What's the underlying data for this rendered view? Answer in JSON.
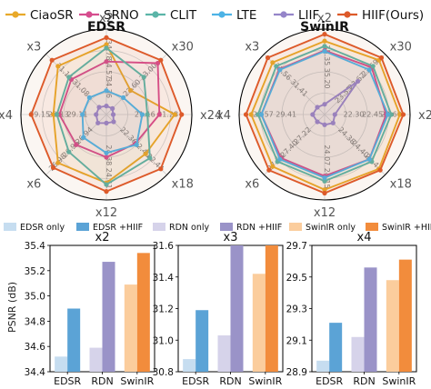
{
  "legend_top": [
    {
      "label": "CiaoSR",
      "color": "#e8a92a"
    },
    {
      "label": "SRNO",
      "color": "#d64d8e"
    },
    {
      "label": "CLIT",
      "color": "#5bb5a8"
    },
    {
      "label": "LTE",
      "color": "#4db3e6"
    },
    {
      "label": "LIIF",
      "color": "#9585c9"
    },
    {
      "label": "HIIF(Ours)",
      "color": "#dd5a2a"
    }
  ],
  "legend_bottom": [
    {
      "label": "EDSR only",
      "color": "#c6ddf0"
    },
    {
      "label": "EDSR +HIIF",
      "color": "#5ba3d6"
    },
    {
      "label": "RDN only",
      "color": "#d6d3ea"
    },
    {
      "label": "RDN +HIIF",
      "color": "#9a93c8"
    },
    {
      "label": "SwinIR only",
      "color": "#fbcd9d"
    },
    {
      "label": "SwinIR +HIIF",
      "color": "#f28c3c"
    }
  ],
  "chart_data": [
    {
      "type": "radar",
      "title": "EDSR",
      "axes": [
        "x2",
        "x30",
        "x24",
        "x18",
        "x12",
        "x6",
        "x4",
        "x3"
      ],
      "tick_labels": [
        [
          "34.36",
          "34.57",
          "34.78"
        ],
        [
          "22.60",
          "23.00"
        ],
        [
          "21.16",
          "21.28"
        ],
        [
          "22.36",
          "22.40",
          "22.44"
        ],
        [
          "24.38",
          "24.41"
        ],
        [
          "26.94",
          "26.96",
          "26.98"
        ],
        [
          "29.11",
          "29.13",
          "29.15"
        ],
        [
          "31.08",
          "31.11"
        ]
      ],
      "series": [
        {
          "name": "CiaoSR",
          "values": [
            0.82,
            0.4,
            0.8,
            0.65,
            0.8,
            0.8,
            0.62,
            0.8
          ]
        },
        {
          "name": "SRNO",
          "values": [
            0.62,
            0.85,
            0.62,
            0.48,
            0.5,
            0.5,
            0.55,
            0.58
          ]
        },
        {
          "name": "CLIT",
          "values": [
            0.78,
            0.62,
            0.48,
            0.72,
            0.82,
            0.62,
            0.58,
            0.62
          ]
        },
        {
          "name": "LTE",
          "values": [
            0.28,
            0.28,
            0.42,
            0.5,
            0.45,
            0.38,
            0.28,
            0.28
          ]
        },
        {
          "name": "LIIF",
          "values": [
            0.1,
            0.1,
            0.08,
            0.12,
            0.1,
            0.14,
            0.12,
            0.12
          ]
        },
        {
          "name": "HIIF(Ours)",
          "values": [
            0.9,
            0.9,
            0.88,
            0.9,
            0.9,
            0.88,
            0.88,
            0.9
          ]
        }
      ]
    },
    {
      "type": "radar",
      "title": "SwinIR",
      "axes": [
        "x2",
        "x30",
        "x24",
        "x18",
        "x12",
        "x6",
        "x4",
        "x3"
      ],
      "tick_labels": [
        [
          "35.20",
          "35.35"
        ],
        [
          "23.55",
          "23.62",
          "23.69"
        ],
        [
          "22.30",
          "22.45",
          "22.60"
        ],
        [
          "24.38",
          "24.40",
          "24.42"
        ],
        [
          "24.07",
          "24.15"
        ],
        [
          "27.22",
          "27.40",
          "27.58"
        ],
        [
          "29.41",
          "29.57"
        ],
        [
          "31.41",
          "31.56"
        ]
      ],
      "series": [
        {
          "name": "CiaoSR",
          "values": [
            0.86,
            0.9,
            0.88,
            0.9,
            0.88,
            0.86,
            0.86,
            0.86
          ]
        },
        {
          "name": "SRNO",
          "values": [
            0.75,
            0.78,
            0.72,
            0.74,
            0.72,
            0.72,
            0.74,
            0.75
          ]
        },
        {
          "name": "CLIT",
          "values": [
            0.8,
            0.8,
            0.78,
            0.78,
            0.78,
            0.78,
            0.78,
            0.8
          ]
        },
        {
          "name": "LTE",
          "values": [
            0.74,
            0.74,
            0.74,
            0.74,
            0.74,
            0.74,
            0.74,
            0.74
          ]
        },
        {
          "name": "LIIF",
          "values": [
            0.12,
            0.55,
            0.12,
            0.14,
            0.12,
            0.12,
            0.14,
            0.12
          ]
        },
        {
          "name": "HIIF(Ours)",
          "values": [
            0.94,
            0.94,
            0.92,
            0.92,
            0.92,
            0.92,
            0.92,
            0.94
          ]
        }
      ]
    },
    {
      "type": "bar",
      "title": "x2",
      "categories": [
        "EDSR",
        "RDN",
        "SwinIR"
      ],
      "ylabel": "PSNR (dB)",
      "ylim": [
        34.4,
        35.4
      ],
      "yticks": [
        "34.4",
        "34.6",
        "34.8",
        "35.0",
        "35.2",
        "35.4"
      ],
      "series": [
        {
          "name": "only",
          "values": [
            34.52,
            34.59,
            35.09
          ]
        },
        {
          "name": "+HIIF",
          "values": [
            34.9,
            35.27,
            35.34
          ]
        }
      ]
    },
    {
      "type": "bar",
      "title": "x3",
      "categories": [
        "EDSR",
        "RDN",
        "SwinIR"
      ],
      "ylim": [
        30.8,
        31.6
      ],
      "yticks": [
        "30.8",
        "31.0",
        "31.2",
        "31.4",
        "31.6"
      ],
      "series": [
        {
          "name": "only",
          "values": [
            30.88,
            31.03,
            31.42
          ]
        },
        {
          "name": "+HIIF",
          "values": [
            31.19,
            31.6,
            31.6
          ]
        }
      ]
    },
    {
      "type": "bar",
      "title": "x4",
      "categories": [
        "EDSR",
        "RDN",
        "SwinIR"
      ],
      "ylim": [
        28.9,
        29.7
      ],
      "yticks": [
        "28.9",
        "29.1",
        "29.3",
        "29.5",
        "29.7"
      ],
      "series": [
        {
          "name": "only",
          "values": [
            28.97,
            29.12,
            29.48
          ]
        },
        {
          "name": "+HIIF",
          "values": [
            29.21,
            29.56,
            29.61
          ]
        }
      ]
    }
  ]
}
